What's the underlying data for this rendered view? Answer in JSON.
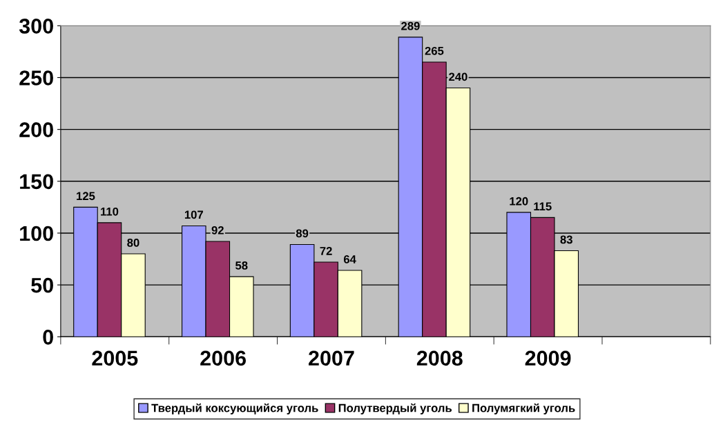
{
  "chart_data": {
    "type": "bar",
    "categories": [
      "2005",
      "2006",
      "2007",
      "2008",
      "2009",
      null
    ],
    "series": [
      {
        "name": "Твердый коксующийся уголь",
        "color": "#9999ff",
        "values": [
          125,
          107,
          89,
          289,
          120,
          null
        ]
      },
      {
        "name": "Полутвердый уголь",
        "color": "#993366",
        "values": [
          110,
          92,
          72,
          265,
          115,
          null
        ]
      },
      {
        "name": "Полумягкий уголь",
        "color": "#ffffcc",
        "values": [
          80,
          58,
          64,
          240,
          83,
          null
        ]
      }
    ],
    "ylim": [
      0,
      300
    ],
    "yticks": [
      0,
      50,
      100,
      150,
      200,
      250,
      300
    ],
    "grid": "y",
    "legend": "bottom",
    "data_labels": true
  }
}
